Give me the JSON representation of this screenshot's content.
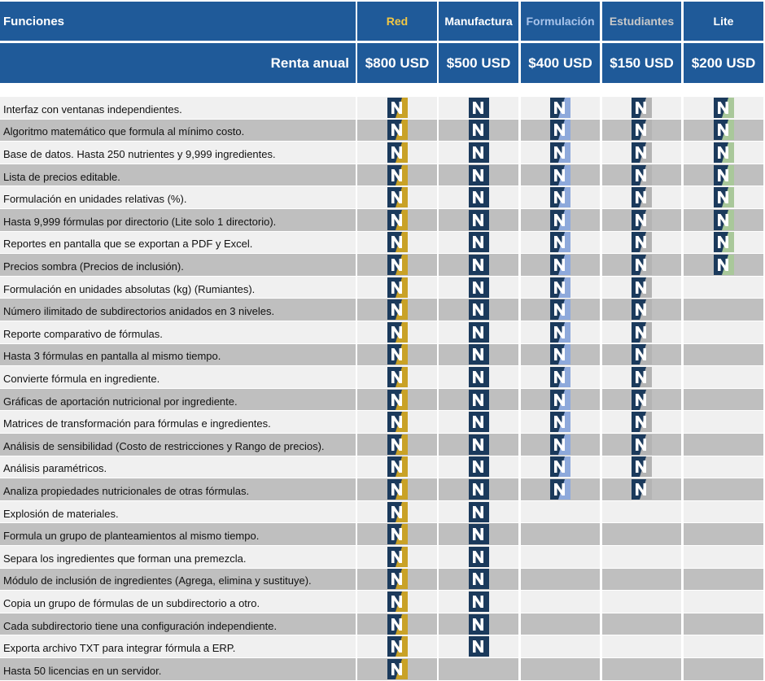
{
  "header": {
    "title": "Funciones",
    "price_label": "Renta anual"
  },
  "columns": [
    {
      "name": "Red",
      "price": "$800 USD",
      "header_color": "#f2c744",
      "icon_color": "#c9a227"
    },
    {
      "name": "Manufactura",
      "price": "$500 USD",
      "header_color": "#ffffff",
      "icon_color": "#1b3a5c"
    },
    {
      "name": "Formulación",
      "price": "$400 USD",
      "header_color": "#a9c4eb",
      "icon_color": "#8ea9db"
    },
    {
      "name": "Estudiantes",
      "price": "$150 USD",
      "header_color": "#c9c9c9",
      "icon_color": "#b4b4b4"
    },
    {
      "name": "Lite",
      "price": "$200 USD",
      "header_color": "#ffffff",
      "icon_color": "#a9c89a"
    }
  ],
  "features": [
    {
      "name": "Interfaz con ventanas independientes.",
      "plans": [
        true,
        true,
        true,
        true,
        true
      ]
    },
    {
      "name": "Algoritmo matemático que formula al mínimo costo.",
      "plans": [
        true,
        true,
        true,
        true,
        true
      ]
    },
    {
      "name": "Base de datos. Hasta 250 nutrientes y 9,999 ingredientes.",
      "plans": [
        true,
        true,
        true,
        true,
        true
      ]
    },
    {
      "name": "Lista de precios editable.",
      "plans": [
        true,
        true,
        true,
        true,
        true
      ]
    },
    {
      "name": "Formulación en unidades relativas (%).",
      "plans": [
        true,
        true,
        true,
        true,
        true
      ]
    },
    {
      "name": "Hasta 9,999 fórmulas por directorio (Lite solo 1 directorio).",
      "plans": [
        true,
        true,
        true,
        true,
        true
      ]
    },
    {
      "name": "Reportes en pantalla que se exportan a PDF y Excel.",
      "plans": [
        true,
        true,
        true,
        true,
        true
      ]
    },
    {
      "name": "Precios sombra (Precios de inclusión).",
      "plans": [
        true,
        true,
        true,
        true,
        true
      ]
    },
    {
      "name": "Formulación en unidades absolutas (kg) (Rumiantes).",
      "plans": [
        true,
        true,
        true,
        true,
        false
      ]
    },
    {
      "name": "Número ilimitado de subdirectorios anidados en 3 niveles.",
      "plans": [
        true,
        true,
        true,
        true,
        false
      ]
    },
    {
      "name": "Reporte comparativo de fórmulas.",
      "plans": [
        true,
        true,
        true,
        true,
        false
      ]
    },
    {
      "name": "Hasta 3 fórmulas en pantalla al mismo tiempo.",
      "plans": [
        true,
        true,
        true,
        true,
        false
      ]
    },
    {
      "name": "Convierte fórmula en ingrediente.",
      "plans": [
        true,
        true,
        true,
        true,
        false
      ]
    },
    {
      "name": "Gráficas de aportación nutricional por ingrediente.",
      "plans": [
        true,
        true,
        true,
        true,
        false
      ]
    },
    {
      "name": "Matrices de transformación para fórmulas e ingredientes.",
      "plans": [
        true,
        true,
        true,
        true,
        false
      ]
    },
    {
      "name": "Análisis de sensibilidad (Costo de restricciones y Rango de precios).",
      "plans": [
        true,
        true,
        true,
        true,
        false
      ]
    },
    {
      "name": "Análisis paramétricos.",
      "plans": [
        true,
        true,
        true,
        true,
        false
      ]
    },
    {
      "name": "Analiza propiedades nutricionales de otras fórmulas.",
      "plans": [
        true,
        true,
        true,
        true,
        false
      ]
    },
    {
      "name": "Explosión de materiales.",
      "plans": [
        true,
        true,
        false,
        false,
        false
      ]
    },
    {
      "name": "Formula un grupo de planteamientos al mismo tiempo.",
      "plans": [
        true,
        true,
        false,
        false,
        false
      ]
    },
    {
      "name": "Separa los ingredientes que forman una premezcla.",
      "plans": [
        true,
        true,
        false,
        false,
        false
      ]
    },
    {
      "name": "Módulo de inclusión de ingredientes (Agrega, elimina y sustituye).",
      "plans": [
        true,
        true,
        false,
        false,
        false
      ]
    },
    {
      "name": "Copia un grupo de fórmulas de un subdirectorio a otro.",
      "plans": [
        true,
        true,
        false,
        false,
        false
      ]
    },
    {
      "name": "Cada subdirectorio tiene una configuración independiente.",
      "plans": [
        true,
        true,
        false,
        false,
        false
      ]
    },
    {
      "name": "Exporta archivo TXT para integrar fórmula a ERP.",
      "plans": [
        true,
        true,
        false,
        false,
        false
      ]
    },
    {
      "name": "Hasta 50 licencias en un servidor.",
      "plans": [
        true,
        false,
        false,
        false,
        false
      ]
    }
  ]
}
